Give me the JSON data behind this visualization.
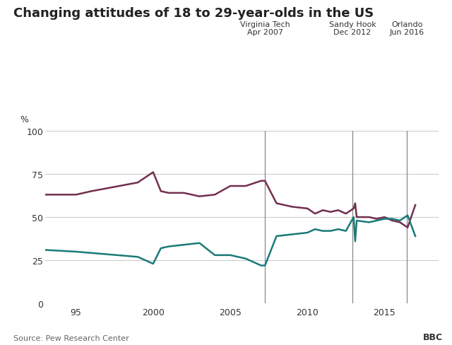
{
  "title": "Changing attitudes of 18 to 29-year-olds in the US",
  "source": "Source: Pew Research Center",
  "bbc_label": "BBC",
  "ylabel": "%",
  "ylim": [
    0,
    100
  ],
  "yticks": [
    0,
    25,
    50,
    75,
    100
  ],
  "xlim": [
    1993,
    2018.5
  ],
  "xticks": [
    1995,
    2000,
    2005,
    2010,
    2015
  ],
  "xticklabels": [
    "95",
    "2000",
    "2005",
    "2010",
    "2015"
  ],
  "color_control": "#722F4E",
  "color_protect": "#1A7A77",
  "color_vline": "#888888",
  "background_color": "#ffffff",
  "grid_color": "#cccccc",
  "events": [
    {
      "x": 2007.25,
      "label": "Virginia Tech\nApr 2007"
    },
    {
      "x": 2012.92,
      "label": "Sandy Hook\nDec 2012"
    },
    {
      "x": 2016.46,
      "label": "Orlando\nJun 2016"
    }
  ],
  "control_data": [
    [
      1993,
      63
    ],
    [
      1995,
      63
    ],
    [
      1996,
      65
    ],
    [
      1999,
      70
    ],
    [
      2000,
      76
    ],
    [
      2000.5,
      65
    ],
    [
      2001,
      64
    ],
    [
      2002,
      64
    ],
    [
      2003,
      62
    ],
    [
      2004,
      63
    ],
    [
      2005,
      68
    ],
    [
      2006,
      68
    ],
    [
      2007,
      71
    ],
    [
      2007.25,
      71
    ],
    [
      2008,
      58
    ],
    [
      2009,
      56
    ],
    [
      2010,
      55
    ],
    [
      2010.5,
      52
    ],
    [
      2011,
      54
    ],
    [
      2011.5,
      53
    ],
    [
      2012,
      54
    ],
    [
      2012.5,
      52
    ],
    [
      2013,
      55
    ],
    [
      2013.1,
      58
    ],
    [
      2013.2,
      50
    ],
    [
      2014,
      50
    ],
    [
      2014.5,
      49
    ],
    [
      2015,
      50
    ],
    [
      2015.5,
      48
    ],
    [
      2016,
      47
    ],
    [
      2016.5,
      44
    ],
    [
      2017,
      57
    ]
  ],
  "protect_data": [
    [
      1993,
      31
    ],
    [
      1995,
      30
    ],
    [
      1999,
      27
    ],
    [
      2000,
      23
    ],
    [
      2000.5,
      32
    ],
    [
      2001,
      33
    ],
    [
      2003,
      35
    ],
    [
      2004,
      28
    ],
    [
      2005,
      28
    ],
    [
      2006,
      26
    ],
    [
      2007,
      22
    ],
    [
      2007.25,
      22
    ],
    [
      2008,
      39
    ],
    [
      2009,
      40
    ],
    [
      2010,
      41
    ],
    [
      2010.5,
      43
    ],
    [
      2011,
      42
    ],
    [
      2011.5,
      42
    ],
    [
      2012,
      43
    ],
    [
      2012.5,
      42
    ],
    [
      2013,
      50
    ],
    [
      2013.1,
      36
    ],
    [
      2013.2,
      48
    ],
    [
      2014,
      47
    ],
    [
      2014.5,
      48
    ],
    [
      2015,
      49
    ],
    [
      2015.5,
      49
    ],
    [
      2016,
      48
    ],
    [
      2016.5,
      51
    ],
    [
      2017,
      39
    ]
  ]
}
